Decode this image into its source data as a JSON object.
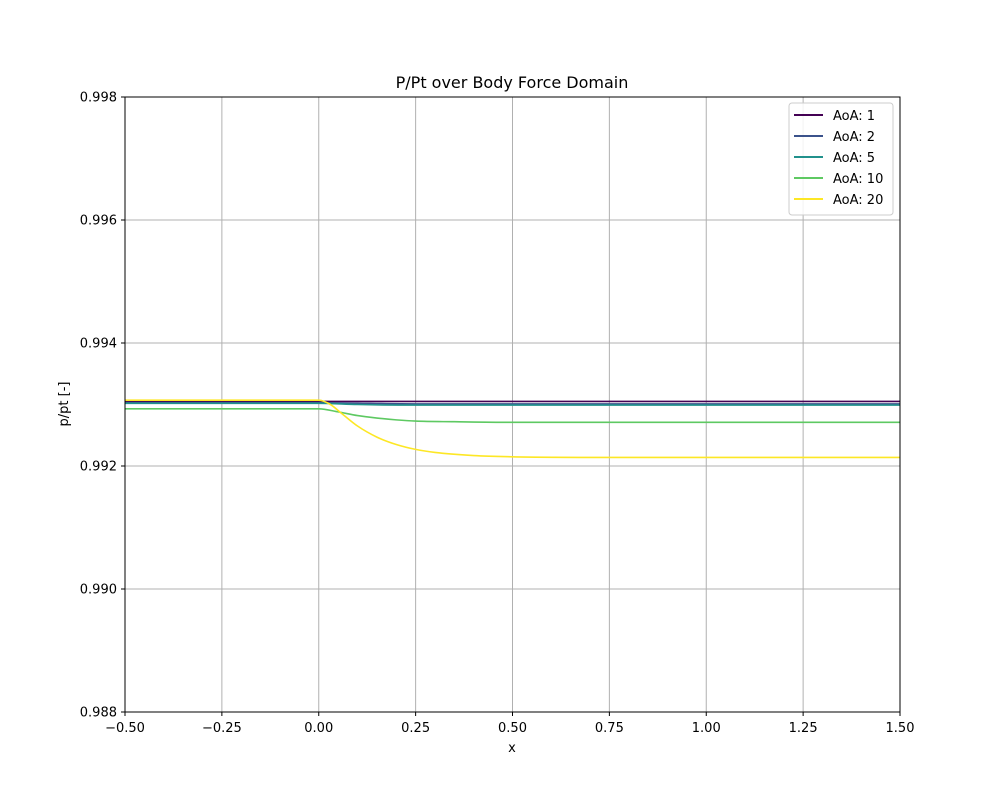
{
  "chart_data": {
    "type": "line",
    "title": "P/Pt over Body Force Domain",
    "xlabel": "x",
    "ylabel": "p/pt [-]",
    "xlim": [
      -0.5,
      1.5
    ],
    "ylim": [
      0.988,
      0.998
    ],
    "xticks": [
      "−0.50",
      "−0.25",
      "0.00",
      "0.25",
      "0.50",
      "0.75",
      "1.00",
      "1.25",
      "1.50"
    ],
    "yticks": [
      "0.988",
      "0.990",
      "0.992",
      "0.994",
      "0.996",
      "0.998"
    ],
    "grid": true,
    "legend_position": "top-right",
    "series": [
      {
        "name": "AoA: 1",
        "color": "#440154",
        "x": [
          -0.5,
          0.0,
          0.1,
          0.25,
          0.5,
          1.0,
          1.5
        ],
        "y": [
          0.99305,
          0.99305,
          0.99305,
          0.99305,
          0.99305,
          0.99305,
          0.99305
        ]
      },
      {
        "name": "AoA: 2",
        "color": "#3b528b",
        "x": [
          -0.5,
          0.0,
          0.1,
          0.25,
          0.5,
          1.0,
          1.5
        ],
        "y": [
          0.99303,
          0.99303,
          0.99302,
          0.99301,
          0.99301,
          0.99301,
          0.99301
        ]
      },
      {
        "name": "AoA: 5",
        "color": "#21918c",
        "x": [
          -0.5,
          0.0,
          0.1,
          0.25,
          0.5,
          1.0,
          1.5
        ],
        "y": [
          0.99302,
          0.99302,
          0.993,
          0.99299,
          0.99299,
          0.99299,
          0.99299
        ]
      },
      {
        "name": "AoA: 10",
        "color": "#5ec962",
        "x": [
          -0.5,
          -0.25,
          0.0,
          0.05,
          0.1,
          0.15,
          0.2,
          0.25,
          0.35,
          0.5,
          0.75,
          1.0,
          1.5
        ],
        "y": [
          0.99293,
          0.99293,
          0.99293,
          0.99288,
          0.99282,
          0.99278,
          0.99275,
          0.99273,
          0.99272,
          0.99271,
          0.99271,
          0.99271,
          0.99271
        ]
      },
      {
        "name": "AoA: 20",
        "color": "#fde725",
        "x": [
          -0.5,
          -0.25,
          0.0,
          0.03,
          0.06,
          0.1,
          0.15,
          0.2,
          0.25,
          0.3,
          0.4,
          0.5,
          0.75,
          1.0,
          1.5
        ],
        "y": [
          0.99307,
          0.99307,
          0.99307,
          0.993,
          0.99285,
          0.99265,
          0.99247,
          0.99235,
          0.99227,
          0.99222,
          0.99217,
          0.99215,
          0.99214,
          0.99214,
          0.99214
        ]
      }
    ]
  }
}
